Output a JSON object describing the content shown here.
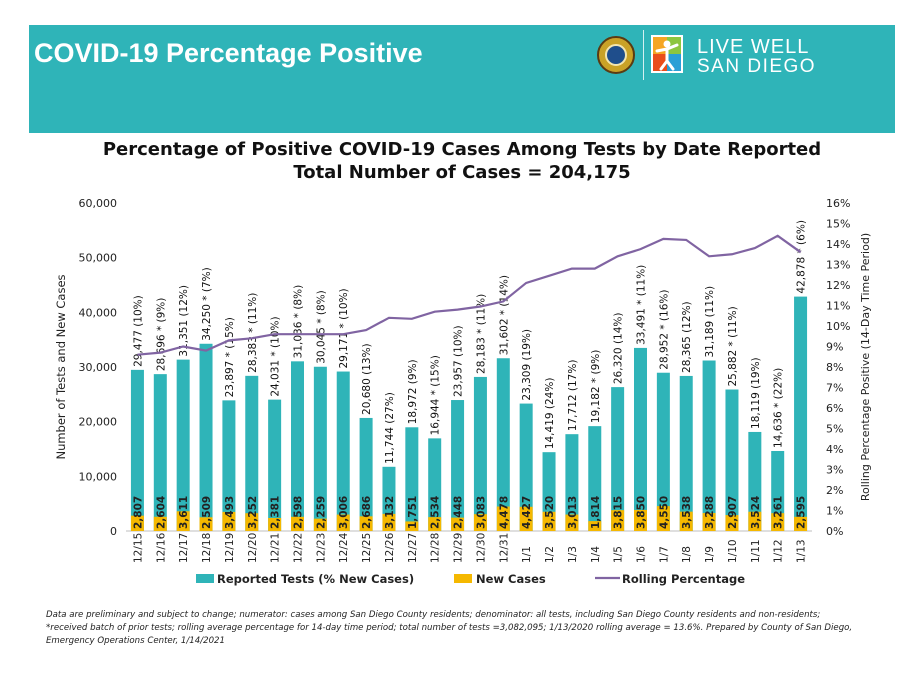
{
  "header": {
    "title": "COVID-19 Percentage Positive",
    "logo_line1": "LIVE WELL",
    "logo_line2": "SAN DIEGO",
    "background": "#2fb4b8"
  },
  "chart_data": {
    "type": "bar",
    "title": "Percentage of Positive COVID-19 Cases Among Tests by Date Reported",
    "subtitle": "Total Number of Cases = 204,175",
    "ylabel": "Number of Tests and New Cases",
    "y2label": "Rolling Percentage Positive (14-Day Time Period)",
    "ylim": [
      0,
      60000
    ],
    "y2lim": [
      0,
      16
    ],
    "yticks": [
      "0",
      "10,000",
      "20,000",
      "30,000",
      "40,000",
      "50,000",
      "60,000"
    ],
    "y2ticks": [
      "0%",
      "1%",
      "2%",
      "3%",
      "4%",
      "5%",
      "6%",
      "7%",
      "8%",
      "9%",
      "10%",
      "11%",
      "12%",
      "13%",
      "14%",
      "15%",
      "16%"
    ],
    "grid": false,
    "legend_position": "bottom",
    "categories": [
      "12/15",
      "12/16",
      "12/17",
      "12/18",
      "12/19",
      "12/20",
      "12/21",
      "12/22",
      "12/23",
      "12/24",
      "12/25",
      "12/26",
      "12/27",
      "12/28",
      "12/29",
      "12/30",
      "12/31",
      "1/1",
      "1/2",
      "1/3",
      "1/4",
      "1/5",
      "1/6",
      "1/7",
      "1/8",
      "1/9",
      "1/10",
      "1/11",
      "1/12",
      "1/13"
    ],
    "series": [
      {
        "name": "Reported Tests (% New Cases)",
        "color": "#2fb4b8",
        "values": [
          29477,
          28696,
          31351,
          34250,
          23897,
          28383,
          24031,
          31036,
          30045,
          29171,
          20680,
          11744,
          18972,
          16944,
          23957,
          28183,
          31602,
          23309,
          14419,
          17712,
          19182,
          26320,
          33491,
          28952,
          28365,
          31189,
          25882,
          18119,
          14636,
          42878
        ],
        "labels": [
          "29,477 (10%)",
          "28,696 * (9%)",
          "31,351 (12%)",
          "34,250 * (7%)",
          "23,897 * (15%)",
          "28,383 * (11%)",
          "24,031 * (10%)",
          "31,036 * (8%)",
          "30,045 * (8%)",
          "29,171 * (10%)",
          "20,680 (13%)",
          "11,744 (27%)",
          "18,972 (9%)",
          "16,944 * (15%)",
          "23,957 (10%)",
          "28,183 * (11%)",
          "31,602 * (14%)",
          "23,309 (19%)",
          "14,419 (24%)",
          "17,712 (17%)",
          "19,182 * (9%)",
          "26,320 (14%)",
          "33,491 * (11%)",
          "28,952 * (16%)",
          "28,365 (12%)",
          "31,189 (11%)",
          "25,882 * (11%)",
          "18,119 (19%)",
          "14,636 * (22%)",
          "42,878 * (6%)"
        ]
      },
      {
        "name": "New Cases",
        "color": "#f5b800",
        "values": [
          2807,
          2604,
          3611,
          2509,
          3493,
          3252,
          2381,
          2598,
          2259,
          3006,
          2686,
          3132,
          1751,
          2534,
          2448,
          3083,
          4478,
          4427,
          3520,
          3013,
          1814,
          3815,
          3850,
          4550,
          3538,
          3288,
          2907,
          3524,
          3261,
          2595
        ],
        "labels": [
          "2,807",
          "2,604",
          "3,611",
          "2,509",
          "3,493",
          "3,252",
          "2,381",
          "2,598",
          "2,259",
          "3,006",
          "2,686",
          "3,132",
          "1,751",
          "2,534",
          "2,448",
          "3,083",
          "4,478",
          "4,427",
          "3,520",
          "3,013",
          "1,814",
          "3,815",
          "3,850",
          "4,550",
          "3,538",
          "3,288",
          "2,907",
          "3,524",
          "3,261",
          "2,595"
        ]
      },
      {
        "name": "Rolling Percentage",
        "color": "#8064a2",
        "axis": "right",
        "values": [
          8.6,
          8.7,
          9.0,
          8.8,
          9.3,
          9.4,
          9.6,
          9.6,
          9.6,
          9.6,
          9.8,
          10.4,
          10.35,
          10.7,
          10.8,
          10.95,
          11.2,
          12.1,
          12.45,
          12.8,
          12.8,
          13.4,
          13.75,
          14.25,
          14.2,
          13.4,
          13.5,
          13.8,
          14.4,
          13.6
        ]
      }
    ]
  },
  "footnote": {
    "line1": "Data are preliminary and subject to change; numerator: cases among San Diego County residents; denominator: all tests, including San Diego County residents and non-residents;",
    "line2": "*received batch of prior tests; rolling average percentage for 14-day time period; total number of tests =3,082,095; 1/13/2020 rolling average = 13.6%. Prepared by County of San Diego,",
    "line3": "Emergency Operations Center, 1/14/2021"
  }
}
